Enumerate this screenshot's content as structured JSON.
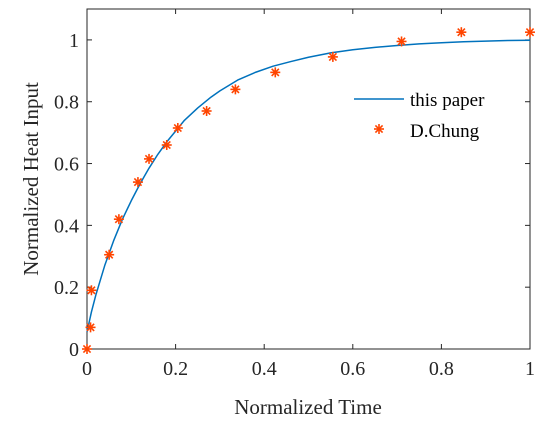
{
  "chart_data": {
    "type": "line",
    "title": "",
    "xlabel": "Normalized Time",
    "ylabel": "Normalized Heat Input",
    "xlim": [
      0,
      1
    ],
    "ylim": [
      0,
      1.1
    ],
    "xticks": [
      0,
      0.2,
      0.4,
      0.6,
      0.8,
      1
    ],
    "xtick_labels": [
      "0",
      "0.2",
      "0.4",
      "0.6",
      "0.8",
      "1"
    ],
    "yticks": [
      0,
      0.2,
      0.4,
      0.6,
      0.8,
      1
    ],
    "ytick_labels": [
      "0",
      "0.2",
      "0.4",
      "0.6",
      "0.8",
      "1"
    ],
    "grid": false,
    "legend_position": "right-center",
    "series": [
      {
        "name": "this paper",
        "kind": "line",
        "color": "#0072BD",
        "x": [
          0,
          0.01,
          0.02,
          0.04,
          0.06,
          0.08,
          0.1,
          0.12,
          0.14,
          0.16,
          0.18,
          0.2,
          0.22,
          0.25,
          0.28,
          0.3,
          0.34,
          0.38,
          0.42,
          0.46,
          0.5,
          0.55,
          0.6,
          0.65,
          0.7,
          0.75,
          0.8,
          0.85,
          0.9,
          0.95,
          1
        ],
        "y": [
          0.055,
          0.12,
          0.175,
          0.27,
          0.35,
          0.42,
          0.48,
          0.535,
          0.585,
          0.63,
          0.67,
          0.705,
          0.74,
          0.78,
          0.815,
          0.835,
          0.87,
          0.895,
          0.915,
          0.93,
          0.944,
          0.958,
          0.968,
          0.976,
          0.982,
          0.987,
          0.991,
          0.994,
          0.996,
          0.998,
          0.999
        ]
      },
      {
        "name": "D.Chung",
        "kind": "scatter",
        "marker": "asterisk",
        "color": "#FF4500",
        "x": [
          0,
          0.008,
          0.01,
          0.05,
          0.072,
          0.115,
          0.14,
          0.18,
          0.205,
          0.27,
          0.335,
          0.425,
          0.555,
          0.71,
          0.845,
          1.0
        ],
        "y": [
          0,
          0.07,
          0.19,
          0.305,
          0.42,
          0.54,
          0.615,
          0.66,
          0.715,
          0.77,
          0.84,
          0.895,
          0.945,
          0.995,
          1.025,
          1.025
        ]
      }
    ]
  }
}
